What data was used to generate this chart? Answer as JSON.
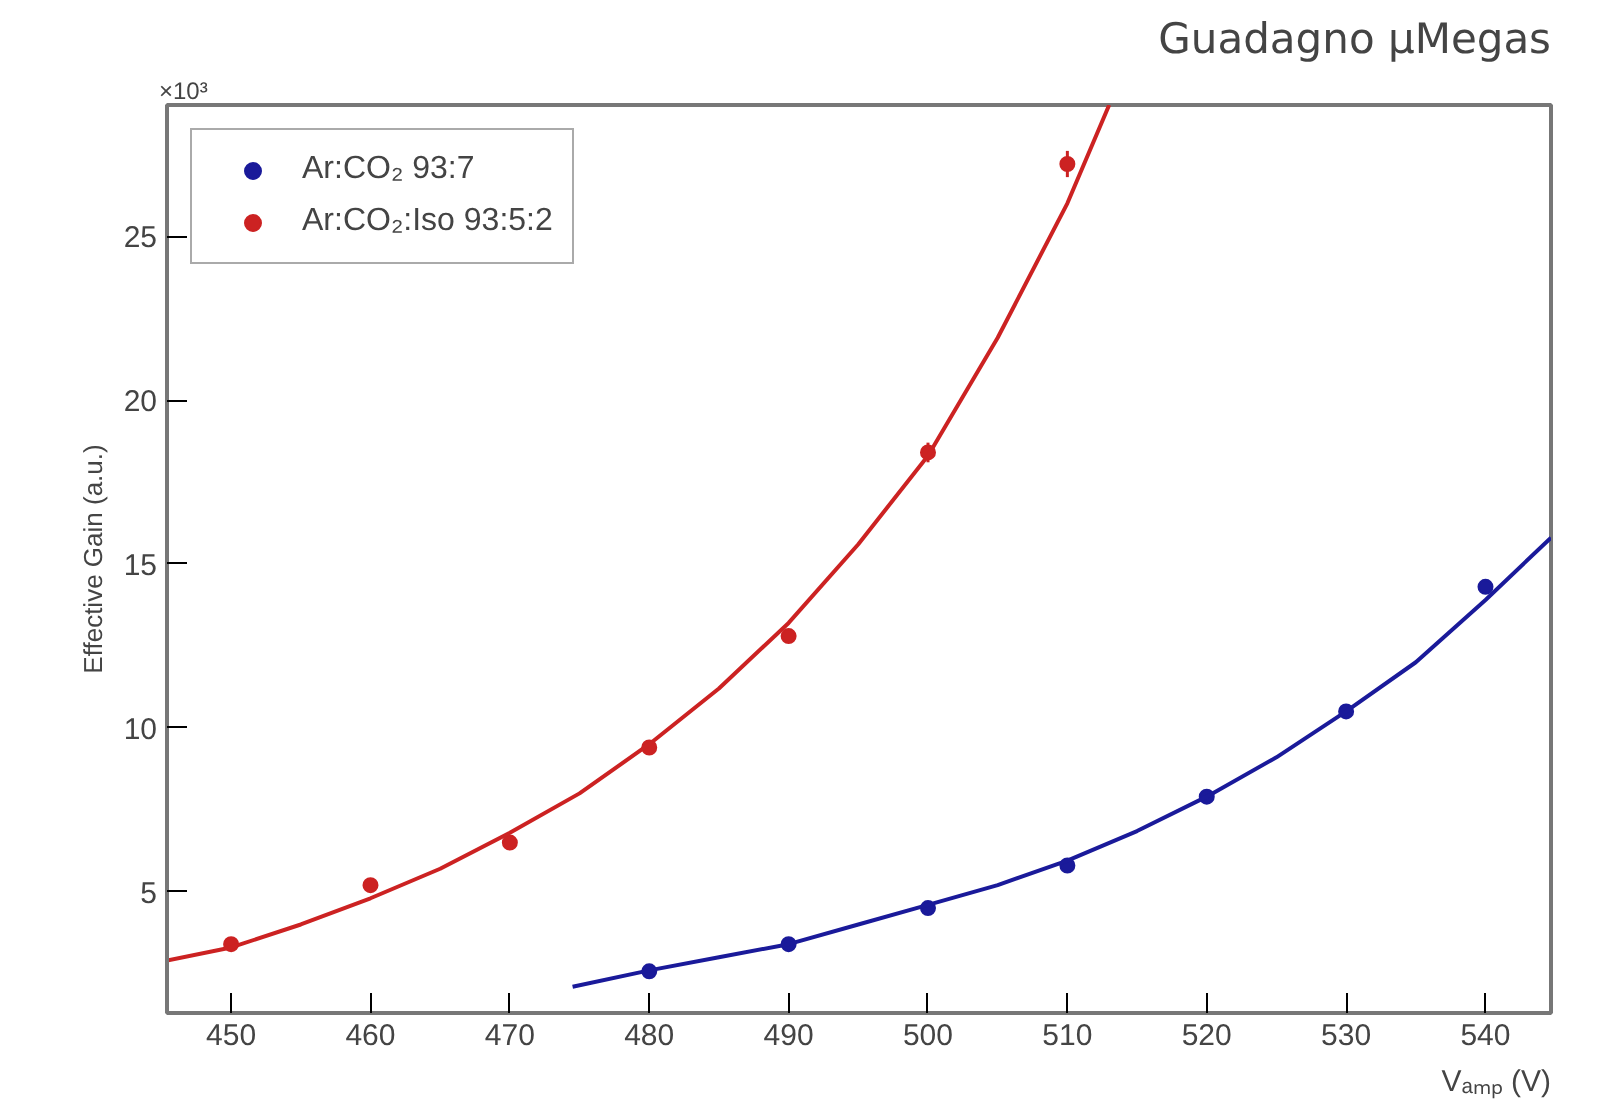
{
  "chart_data": {
    "type": "scatter",
    "title": "Guadagno µMegas",
    "xlabel": "Vₐₘₚ (V)",
    "ylabel": "Effective Gain (a.u.)",
    "annotations": [
      "×10³"
    ],
    "xlim": [
      445.4,
      544.7
    ],
    "ylim": [
      1.3,
      29.0
    ],
    "xticks": [
      450,
      460,
      470,
      480,
      490,
      500,
      510,
      520,
      530,
      540
    ],
    "yticks": [
      5,
      10,
      15,
      20,
      25
    ],
    "grid": false,
    "legend": "top left",
    "marker": "circle",
    "series": [
      {
        "name": "Ar:CO₂ 93:7",
        "color": "#1a1a9a",
        "x": [
          480,
          490,
          500,
          510,
          520,
          530,
          540
        ],
        "values": [
          2.57,
          3.4,
          4.5,
          5.8,
          7.9,
          10.5,
          14.3
        ]
      },
      {
        "name": "Ar:CO₂:Iso 93:5:2",
        "color": "#cc2222",
        "x": [
          450,
          460,
          470,
          480,
          490,
          500,
          510
        ],
        "values": [
          3.4,
          5.2,
          6.5,
          9.4,
          12.8,
          18.4,
          27.2
        ],
        "errors": [
          null,
          null,
          null,
          null,
          0.2,
          0.3,
          0.4
        ]
      },
      {
        "type": "line",
        "marker": "none",
        "color": "#1a1a9a",
        "x": [
          474.5,
          480,
          485,
          490,
          495,
          500,
          505,
          510,
          515,
          520,
          525,
          530,
          535,
          540,
          544.7
        ],
        "values": [
          2.1,
          2.6,
          3.0,
          3.4,
          4.0,
          4.6,
          5.2,
          5.95,
          6.85,
          7.9,
          9.1,
          10.5,
          12.0,
          13.9,
          15.8
        ]
      },
      {
        "type": "line",
        "marker": "none",
        "color": "#cc2222",
        "x": [
          445.4,
          450,
          455,
          460,
          465,
          470,
          475,
          480,
          485,
          490,
          495,
          500,
          505,
          510,
          513
        ],
        "values": [
          2.9,
          3.3,
          4.0,
          4.8,
          5.7,
          6.8,
          8.0,
          9.5,
          11.2,
          13.2,
          15.6,
          18.3,
          21.9,
          26.0,
          29.0
        ]
      }
    ]
  }
}
